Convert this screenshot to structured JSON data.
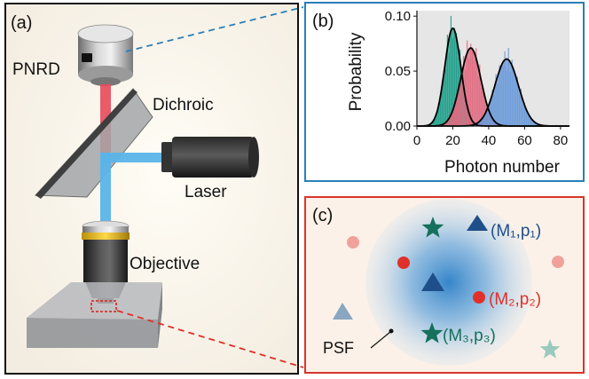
{
  "panels": {
    "a": {
      "label": "(a)",
      "parts": {
        "detector": "PNRD",
        "dichroic": "Dichroic",
        "laser": "Laser",
        "objective": "Objective"
      }
    },
    "b": {
      "label": "(b)",
      "border_color": "#2a7fb8"
    },
    "c": {
      "label": "(c)",
      "border_color": "#d9362b",
      "psf_label": "PSF",
      "markers": [
        {
          "shape": "triangle",
          "color": "#1f4f8a",
          "text": "(M₁,p₁)"
        },
        {
          "shape": "circle",
          "color": "#e0302a",
          "text": "(M₂,p₂)"
        },
        {
          "shape": "star",
          "color": "#15705c",
          "text": "(M₃,p₃)"
        }
      ]
    }
  },
  "colors": {
    "red_beam": "#e84a5a",
    "blue_beam": "#5ab4e8",
    "teal": "#1f9f8a",
    "pink": "#e06a80",
    "blue": "#6a9ad8"
  },
  "chart_data": {
    "type": "bar",
    "xlabel": "Photon number",
    "ylabel": "Probability",
    "xlim": [
      0,
      85
    ],
    "ylim": [
      0,
      0.105
    ],
    "xticks": [
      0,
      20,
      40,
      60,
      80
    ],
    "yticks": [
      "0.00",
      "0.05",
      "0.10"
    ],
    "background": "#e6e6e6",
    "series": [
      {
        "color": "#1f9f8a",
        "mean": 20,
        "peak": 0.089
      },
      {
        "color": "#e06a80",
        "mean": 30,
        "peak": 0.071
      },
      {
        "color": "#6a9ad8",
        "mean": 50,
        "peak": 0.061
      }
    ]
  }
}
